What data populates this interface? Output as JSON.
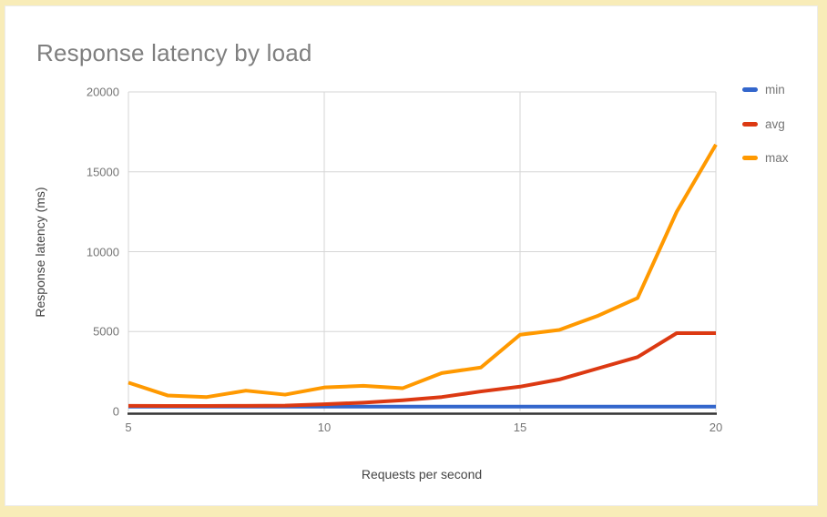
{
  "header": {
    "title": "Response latency by load"
  },
  "chart_data": {
    "type": "line",
    "title": "Response latency by load",
    "xlabel": "Requests per second",
    "ylabel": "Response latency (ms)",
    "x": [
      5,
      6,
      7,
      8,
      9,
      10,
      11,
      12,
      13,
      14,
      15,
      16,
      17,
      18,
      19,
      20
    ],
    "series": [
      {
        "name": "min",
        "color": "#3366cc",
        "values": [
          300,
          300,
          300,
          300,
          300,
          300,
          300,
          300,
          300,
          300,
          300,
          300,
          300,
          300,
          300,
          300
        ]
      },
      {
        "name": "avg",
        "color": "#dc3912",
        "values": [
          350,
          340,
          345,
          350,
          360,
          450,
          550,
          700,
          900,
          1250,
          1550,
          2000,
          2700,
          3400,
          4900,
          4900
        ]
      },
      {
        "name": "max",
        "color": "#ff9900",
        "values": [
          1800,
          1000,
          900,
          1300,
          1050,
          1500,
          1600,
          1450,
          2400,
          2750,
          4800,
          5100,
          6000,
          7100,
          12500,
          16700
        ]
      }
    ],
    "xlim": [
      5,
      20
    ],
    "ylim": [
      0,
      20000
    ],
    "x_ticks": [
      5,
      10,
      15,
      20
    ],
    "y_ticks": [
      0,
      5000,
      10000,
      15000,
      20000
    ],
    "grid": true,
    "legend_position": "right"
  },
  "colors": {
    "frame": "#f8ecb8",
    "card": "#ffffff",
    "grid": "#d6d6d6",
    "baseline": "#333333",
    "title_text": "#7f7f7f",
    "tick_text": "#757575",
    "axis_title_text": "#444444",
    "legend_text": "#757575"
  }
}
